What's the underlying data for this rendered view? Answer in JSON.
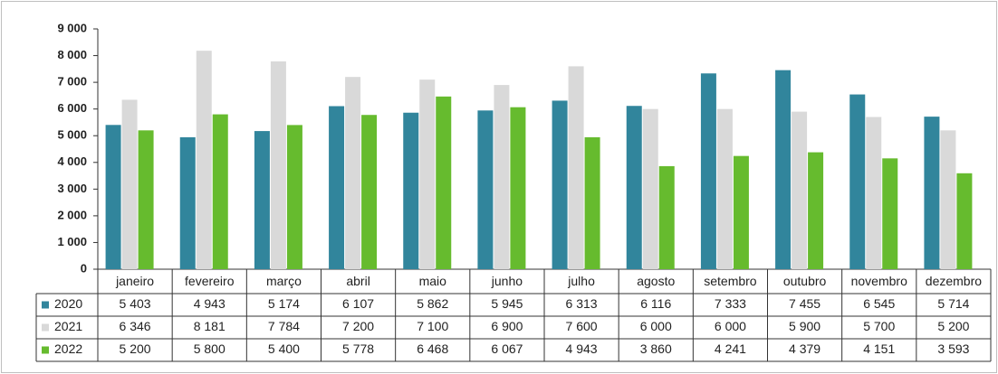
{
  "chart_data": {
    "type": "bar",
    "categories": [
      "janeiro",
      "fevereiro",
      "março",
      "abril",
      "maio",
      "junho",
      "julho",
      "agosto",
      "setembro",
      "outubro",
      "novembro",
      "dezembro"
    ],
    "series": [
      {
        "name": "2020",
        "color": "#31859c",
        "values": [
          5403,
          4943,
          5174,
          6107,
          5862,
          5945,
          6313,
          6116,
          7333,
          7455,
          6545,
          5714
        ],
        "value_labels": [
          "5 403",
          "4 943",
          "5 174",
          "6 107",
          "5 862",
          "5 945",
          "6 313",
          "6 116",
          "7 333",
          "7 455",
          "6 545",
          "5 714"
        ]
      },
      {
        "name": "2021",
        "color": "#d9d9d9",
        "values": [
          6346,
          8181,
          7784,
          7200,
          7100,
          6900,
          7600,
          6000,
          6000,
          5900,
          5700,
          5200
        ],
        "value_labels": [
          "6 346",
          "8 181",
          "7 784",
          "7 200",
          "7 100",
          "6 900",
          "7 600",
          "6 000",
          "6 000",
          "5 900",
          "5 700",
          "5 200"
        ]
      },
      {
        "name": "2022",
        "color": "#66bb2e",
        "values": [
          5200,
          5800,
          5400,
          5778,
          6468,
          6067,
          4943,
          3860,
          4241,
          4379,
          4151,
          3593
        ],
        "value_labels": [
          "5 200",
          "5 800",
          "5 400",
          "5 778",
          "6 468",
          "6 067",
          "4 943",
          "3 860",
          "4 241",
          "4 379",
          "4 151",
          "3 593"
        ]
      }
    ],
    "ylim": [
      0,
      9000
    ],
    "yticks": [
      0,
      {
        "value": 1000,
        "label": "1 000"
      },
      {
        "value": 2000,
        "label": "2 000"
      },
      {
        "value": 3000,
        "label": "3 000"
      },
      {
        "value": 4000,
        "label": "4 000"
      },
      {
        "value": 5000,
        "label": "5 000"
      },
      {
        "value": 6000,
        "label": "6 000"
      },
      {
        "value": 7000,
        "label": "7 000"
      },
      {
        "value": 8000,
        "label": "8 000"
      },
      {
        "value": 9000,
        "label": "9 000"
      }
    ]
  }
}
